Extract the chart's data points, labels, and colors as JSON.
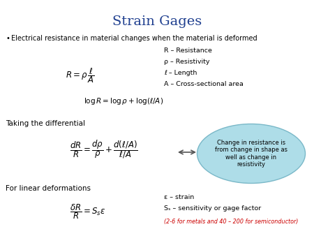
{
  "title": "Strain Gages",
  "title_color": "#1F3F8F",
  "title_fontsize": 14,
  "bg_color": "#FFFFFF",
  "bullet_text": "Electrical resistance in material changes when the material is deformed",
  "def_texts": [
    "R – Resistance",
    "ρ – Resistivity",
    "ℓ – Length",
    "A – Cross-sectional area"
  ],
  "label_diff": "Taking the differential",
  "bubble_text": "Change in resistance is\nfrom change in shape as\nwell as change in\nresistivity",
  "bubble_bg": "#AEDDE8",
  "bubble_edge": "#7ab8c8",
  "label_linear": "For linear deformations",
  "strain_def1": "ε – strain",
  "strain_def2": "Sₛ – sensitivity or gage factor",
  "strain_note": "(2-6 for metals and 40 – 200 for semiconductor)",
  "strain_note_color": "#CC0000",
  "text_fontsize": 7.0,
  "def_fontsize": 6.8,
  "label_fontsize": 7.5,
  "eq_fontsize": 8.5,
  "note_fontsize": 5.8
}
